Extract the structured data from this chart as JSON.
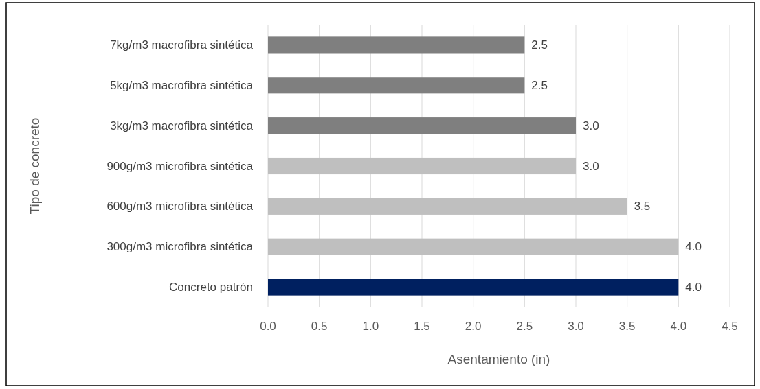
{
  "chart_data": {
    "type": "bar",
    "orientation": "horizontal",
    "xlabel": "Asentamiento (in)",
    "ylabel": "Tipo de concreto",
    "categories": [
      "7kg/m3 macrofibra sintética",
      "5kg/m3 macrofibra sintética",
      "3kg/m3 macrofibra sintética",
      "900g/m3 microfibra sintética",
      "600g/m3 microfibra sintética",
      "300g/m3 microfibra sintética",
      "Concreto patrón"
    ],
    "values": [
      2.5,
      2.5,
      3.0,
      3.0,
      3.5,
      4.0,
      4.0
    ],
    "colors": [
      "#7f7f7f",
      "#7f7f7f",
      "#7f7f7f",
      "#bfbfbf",
      "#bfbfbf",
      "#bfbfbf",
      "#002060"
    ],
    "value_labels": [
      "2.5",
      "2.5",
      "3.0",
      "3.0",
      "3.5",
      "4.0",
      "4.0"
    ],
    "xlim": [
      0,
      4.5
    ],
    "xticks": [
      {
        "value": 0,
        "label": "0.0"
      },
      {
        "value": 0.5,
        "label": "0.5"
      },
      {
        "value": 1,
        "label": "1.0"
      },
      {
        "value": 1.5,
        "label": "1.5"
      },
      {
        "value": 2,
        "label": "2.0"
      },
      {
        "value": 2.5,
        "label": "2.5"
      },
      {
        "value": 3,
        "label": "3.0"
      },
      {
        "value": 3.5,
        "label": "3.5"
      },
      {
        "value": 4,
        "label": "4.0"
      },
      {
        "value": 4.5,
        "label": "4.5"
      }
    ],
    "grid": "x"
  }
}
